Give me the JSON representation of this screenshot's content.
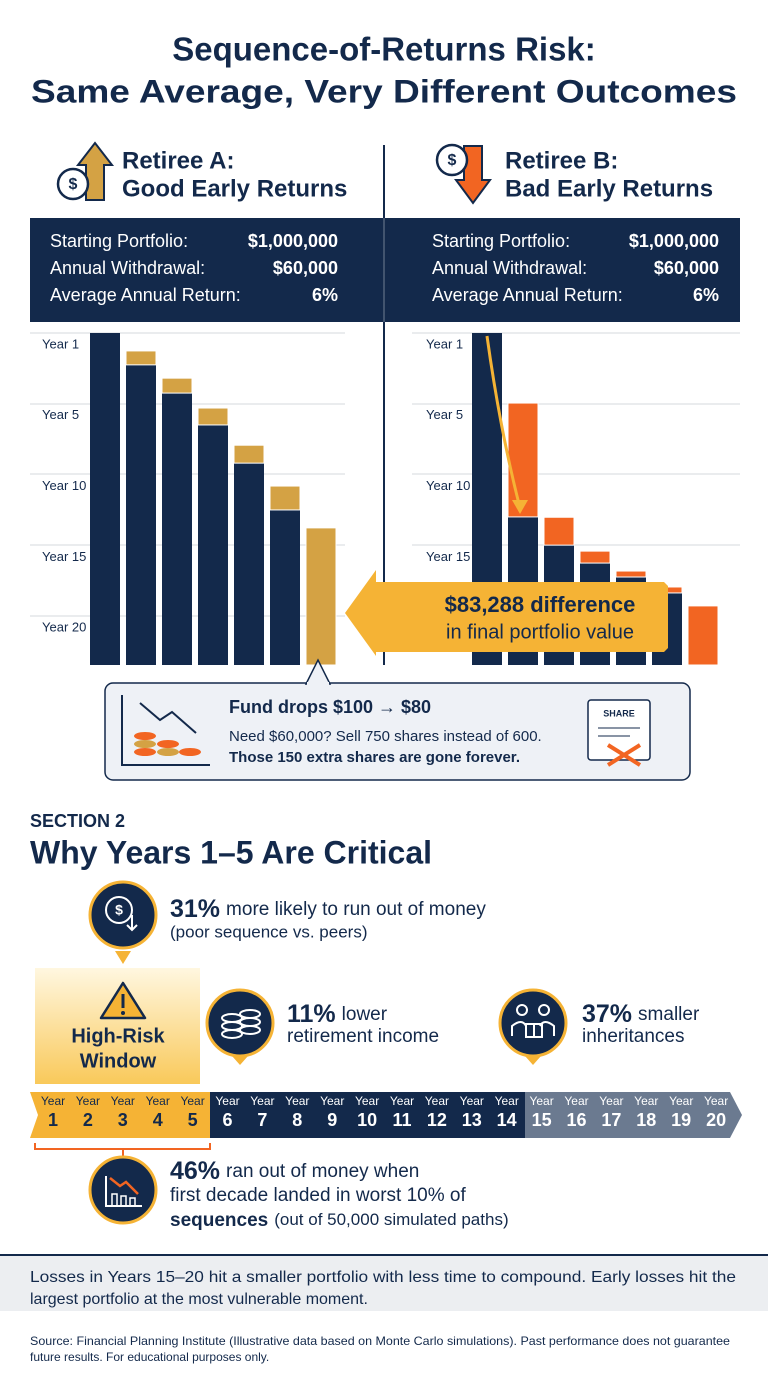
{
  "header": {
    "title_line1": "Sequence-of-Returns Risk:",
    "title_line2": "Same Average, Very Different Outcomes"
  },
  "retirees": [
    {
      "name": "Retiree A:",
      "scenario": "Good Early Returns",
      "rows": [
        [
          "Starting Portfolio:",
          "$1,000,000"
        ],
        [
          "Annual Withdrawal:",
          "$60,000"
        ],
        [
          "Average Annual Return:",
          "6%"
        ]
      ],
      "chart": {
        "row_labels": [
          "Year 1",
          "Year 5",
          "Year 10",
          "Year 15",
          "Year 20"
        ],
        "remaining": [
          100,
          90.4,
          81.9,
          72.3,
          60.8,
          46.7,
          0
        ],
        "loss": [
          0,
          4.2,
          4.5,
          5.1,
          5.4,
          7.2,
          41.3
        ],
        "remaining_color": "#13294b",
        "loss_color": "#d4a244"
      }
    },
    {
      "name": "Retiree B:",
      "scenario": "Bad Early Returns",
      "rows": [
        [
          "Starting Portfolio:",
          "$1,000,000"
        ],
        [
          "Annual Withdrawal:",
          "$60,000"
        ],
        [
          "Average Annual Return:",
          "6%"
        ]
      ],
      "chart": {
        "row_labels": [
          "Year 1",
          "Year 5",
          "Year 10",
          "Year 15"
        ],
        "remaining": [
          100,
          44.6,
          36.1,
          30.7,
          26.5,
          21.7,
          0
        ],
        "loss": [
          0,
          34.3,
          8.4,
          3.6,
          1.8,
          1.8,
          17.8
        ],
        "remaining_color": "#13294b",
        "loss_color": "#f26522"
      }
    }
  ],
  "callout": {
    "amount": "$83,288 difference",
    "text": "in final portfolio value"
  },
  "example": {
    "title": "Fund drops $100 → $80",
    "line1": "Need $60,000? Sell 750 shares instead of 600.",
    "line2": "Those 150 extra shares are gone forever.",
    "icon_label": "SHARE"
  },
  "section": {
    "kicker": "SECTION 2",
    "title": "Why Years 1–5 Are Critical"
  },
  "stats": [
    {
      "figure": "31%",
      "text": "more likely to run out of money",
      "note": "(poor sequence vs. peers)"
    },
    {
      "figure": "11%",
      "text": "lower",
      "note": "retirement income"
    },
    {
      "figure": "37%",
      "text": "smaller",
      "note": "inheritances"
    },
    {
      "figure": "46%",
      "text": "ran out of money when",
      "line2": "first decade landed in worst 10% of",
      "bold": "sequences",
      "note": "(out of 50,000 simulated paths)"
    }
  ],
  "window": {
    "line1": "High-Risk",
    "line2": "Window"
  },
  "timeline": {
    "unit": "Year",
    "years": [
      "1",
      "2",
      "3",
      "4",
      "5",
      "6",
      "7",
      "8",
      "9",
      "10",
      "11",
      "12",
      "13",
      "14",
      "15",
      "16",
      "17",
      "18",
      "19",
      "20"
    ]
  },
  "footer": {
    "line1": "Losses in Years 15–20 hit a smaller portfolio with less time to compound. Early losses hit the",
    "line2": "largest portfolio at the most vulnerable moment."
  },
  "source": {
    "line1": "Source: Financial Planning Institute (Illustrative data based on Monte Carlo simulations). Past performance does not guarantee",
    "line2": "future results. For educational purposes only."
  }
}
